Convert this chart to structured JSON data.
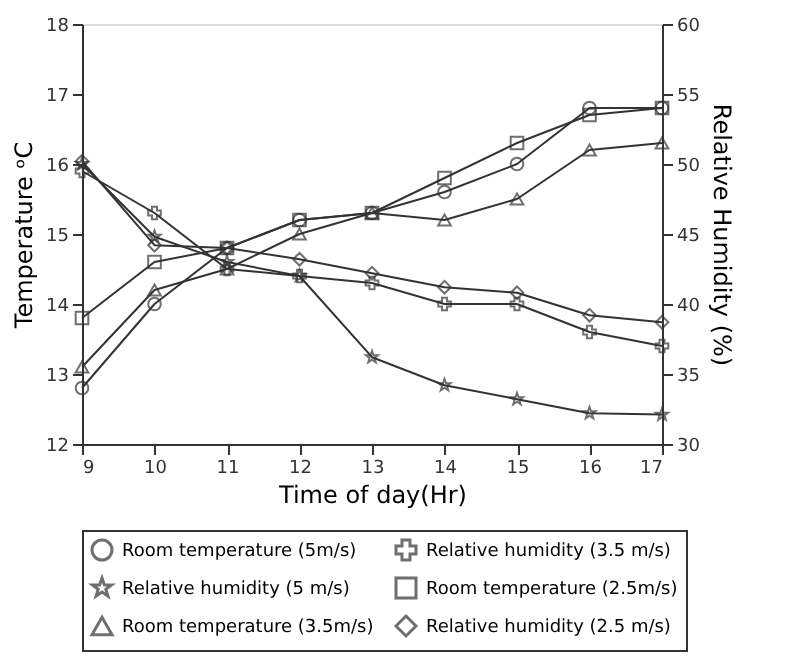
{
  "chart_data": {
    "type": "line",
    "xlabel": "Time of day(Hr)",
    "ylabel": "Temperature ᵒC",
    "y2label": "Relative Humidity (%)",
    "x": [
      9,
      10,
      11,
      12,
      13,
      14,
      15,
      16,
      17
    ],
    "xlim": [
      9,
      17
    ],
    "xticks": [
      9,
      10,
      11,
      12,
      13,
      14,
      15,
      16,
      17
    ],
    "ylim": [
      12,
      18
    ],
    "yticks": [
      12,
      13,
      14,
      15,
      16,
      17,
      18
    ],
    "y2lim": [
      30,
      60
    ],
    "y2ticks": [
      30,
      35,
      40,
      45,
      50,
      55,
      60
    ],
    "grid": false,
    "legend": "bottom",
    "series": [
      {
        "name": "Room temperature (5m/s)",
        "color": "#333333",
        "marker": "circle",
        "values": [
          12.8,
          14.0,
          14.8,
          15.2,
          15.3,
          15.6,
          16.0,
          16.8,
          16.8
        ]
      },
      {
        "name": "Relative humidity (3.5 m/s)",
        "color": "#333333",
        "marker": "cross",
        "axis": "y2",
        "values": [
          49.5,
          46.5,
          42.5,
          42,
          41.5,
          40,
          40,
          38,
          37
        ]
      },
      {
        "name": "Relative humidity (5 m/s)",
        "color": "#333333",
        "marker": "star",
        "axis": "y2",
        "values": [
          50,
          44.8,
          43,
          42,
          36.2,
          34.2,
          33.2,
          32.2,
          32.1
        ]
      },
      {
        "name": "Room temperature (2.5m/s)",
        "color": "#333333",
        "marker": "square",
        "values": [
          13.8,
          14.6,
          14.8,
          15.2,
          15.3,
          15.8,
          16.3,
          16.7,
          16.8
        ]
      },
      {
        "name": "Room temperature (3.5m/s)",
        "color": "#333333",
        "marker": "triangle",
        "values": [
          13.1,
          14.2,
          14.5,
          15.0,
          15.3,
          15.2,
          15.5,
          16.2,
          16.3
        ]
      },
      {
        "name": "Relative humidity (2.5 m/s)",
        "color": "#333333",
        "marker": "diamond",
        "axis": "y2",
        "values": [
          50.2,
          44.2,
          44,
          43.2,
          42.2,
          41.2,
          40.8,
          39.2,
          38.7
        ]
      }
    ]
  }
}
